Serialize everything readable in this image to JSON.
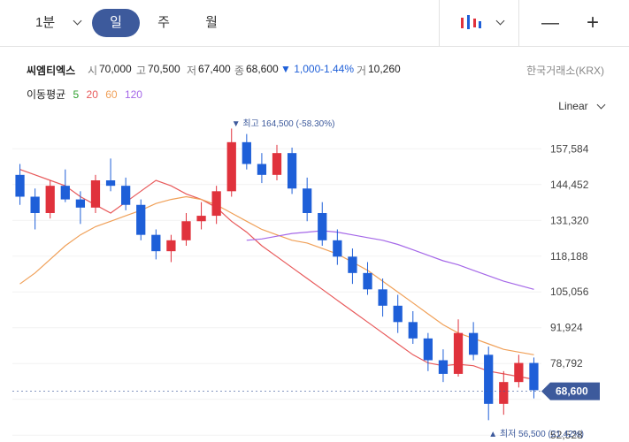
{
  "toolbar": {
    "interval": "1분",
    "tabs": [
      "일",
      "주",
      "월"
    ],
    "active_tab": "일",
    "chart_type_icon": "candlestick-icon",
    "zoom_out": "—",
    "zoom_in": "+"
  },
  "stock": {
    "name": "씨엠티엑스",
    "open_label": "시",
    "open": "70,000",
    "high_label": "고",
    "high": "70,500",
    "low_label": "저",
    "low": "67,400",
    "close_label": "종",
    "close": "68,600",
    "change": "▼ 1,000",
    "change_pct": "-1.44%",
    "volume_label": "거",
    "volume": "10,260",
    "exchange": "한국거래소(KRX)"
  },
  "ma": {
    "label": "이동평균",
    "periods": [
      "5",
      "20",
      "60",
      "120"
    ],
    "colors": [
      "#2ea02e",
      "#e8595a",
      "#f0a058",
      "#a568e8"
    ]
  },
  "scale_label": "Linear",
  "colors": {
    "up": "#e0323c",
    "down": "#1e5fd8",
    "accent": "#3d5a9c"
  },
  "chart_data": {
    "type": "candlestick",
    "y_ticks": [
      157584,
      144452,
      131320,
      118188,
      105056,
      91924,
      78792,
      65660,
      52528
    ],
    "y_tick_labels": [
      "157,584",
      "144,452",
      "131,320",
      "118,188",
      "105,056",
      "91,924",
      "78,792",
      "",
      "52,528"
    ],
    "ylim": [
      50000,
      170000
    ],
    "last_price": 68600,
    "last_price_label": "68,600",
    "high_annotation": "▼ 최고 164,500 (-58.30%)",
    "high_value": 164500,
    "low_annotation": "▲ 최저 56,500 (21.42%)",
    "low_value": 56500,
    "ma_lines": [
      {
        "period": "20",
        "values": [
          150000,
          148000,
          146000,
          144000,
          140000,
          137000,
          134000,
          138000,
          142000,
          146000,
          144000,
          141000,
          139000,
          136000,
          131000,
          127000,
          122000,
          118000,
          114000,
          110000,
          106000,
          102000,
          98000,
          94000,
          90000,
          86000,
          82000,
          79000,
          78000,
          78500,
          78000,
          76000,
          75000,
          74000,
          73000
        ]
      },
      {
        "period": "60",
        "values": [
          108000,
          112000,
          117000,
          122000,
          126000,
          129000,
          131000,
          133000,
          135000,
          137500,
          139000,
          140000,
          139000,
          137000,
          134000,
          131000,
          128000,
          126000,
          124000,
          123000,
          121000,
          119000,
          116000,
          113000,
          109000,
          105000,
          101000,
          97000,
          93000,
          90000,
          88000,
          86000,
          84000,
          83000,
          82000
        ]
      },
      {
        "period": "120",
        "values": [
          null,
          null,
          null,
          null,
          null,
          null,
          null,
          null,
          null,
          null,
          null,
          null,
          null,
          null,
          null,
          124000,
          124500,
          125500,
          126500,
          127000,
          127500,
          127000,
          126000,
          125000,
          124000,
          122500,
          120500,
          118500,
          116500,
          115000,
          113000,
          111000,
          109000,
          107500,
          106000
        ]
      }
    ],
    "candles": [
      [
        148000,
        152000,
        137000,
        140000
      ],
      [
        140000,
        143000,
        128000,
        134000
      ],
      [
        134000,
        146000,
        132000,
        144000
      ],
      [
        144000,
        150000,
        138000,
        139000
      ],
      [
        139000,
        142000,
        130000,
        136000
      ],
      [
        136000,
        148000,
        134000,
        146000
      ],
      [
        146000,
        154000,
        142000,
        144000
      ],
      [
        144000,
        147000,
        135000,
        137000
      ],
      [
        137000,
        139000,
        124000,
        126000
      ],
      [
        126000,
        128000,
        117000,
        120000
      ],
      [
        120000,
        126000,
        116000,
        124000
      ],
      [
        124000,
        134000,
        122000,
        131000
      ],
      [
        131000,
        138000,
        128000,
        133000
      ],
      [
        133000,
        144000,
        130000,
        142000
      ],
      [
        142000,
        165000,
        140000,
        160000
      ],
      [
        160000,
        163000,
        150000,
        152000
      ],
      [
        152000,
        156000,
        145000,
        148000
      ],
      [
        148000,
        159000,
        146000,
        156000
      ],
      [
        156000,
        158000,
        141000,
        143000
      ],
      [
        143000,
        147000,
        131000,
        134000
      ],
      [
        134000,
        138000,
        122000,
        124000
      ],
      [
        124000,
        128000,
        115000,
        118000
      ],
      [
        118000,
        121000,
        108000,
        112000
      ],
      [
        112000,
        116000,
        104000,
        106000
      ],
      [
        106000,
        110000,
        96000,
        100000
      ],
      [
        100000,
        104000,
        90000,
        94000
      ],
      [
        94000,
        98000,
        86000,
        88000
      ],
      [
        88000,
        90000,
        76000,
        80000
      ],
      [
        80000,
        84000,
        72000,
        75000
      ],
      [
        75000,
        95000,
        74000,
        90000
      ],
      [
        90000,
        94000,
        80000,
        82000
      ],
      [
        82000,
        85000,
        58000,
        64000
      ],
      [
        64000,
        76000,
        60000,
        72000
      ],
      [
        72000,
        82000,
        70000,
        79000
      ],
      [
        79000,
        81000,
        66000,
        69000
      ]
    ]
  }
}
